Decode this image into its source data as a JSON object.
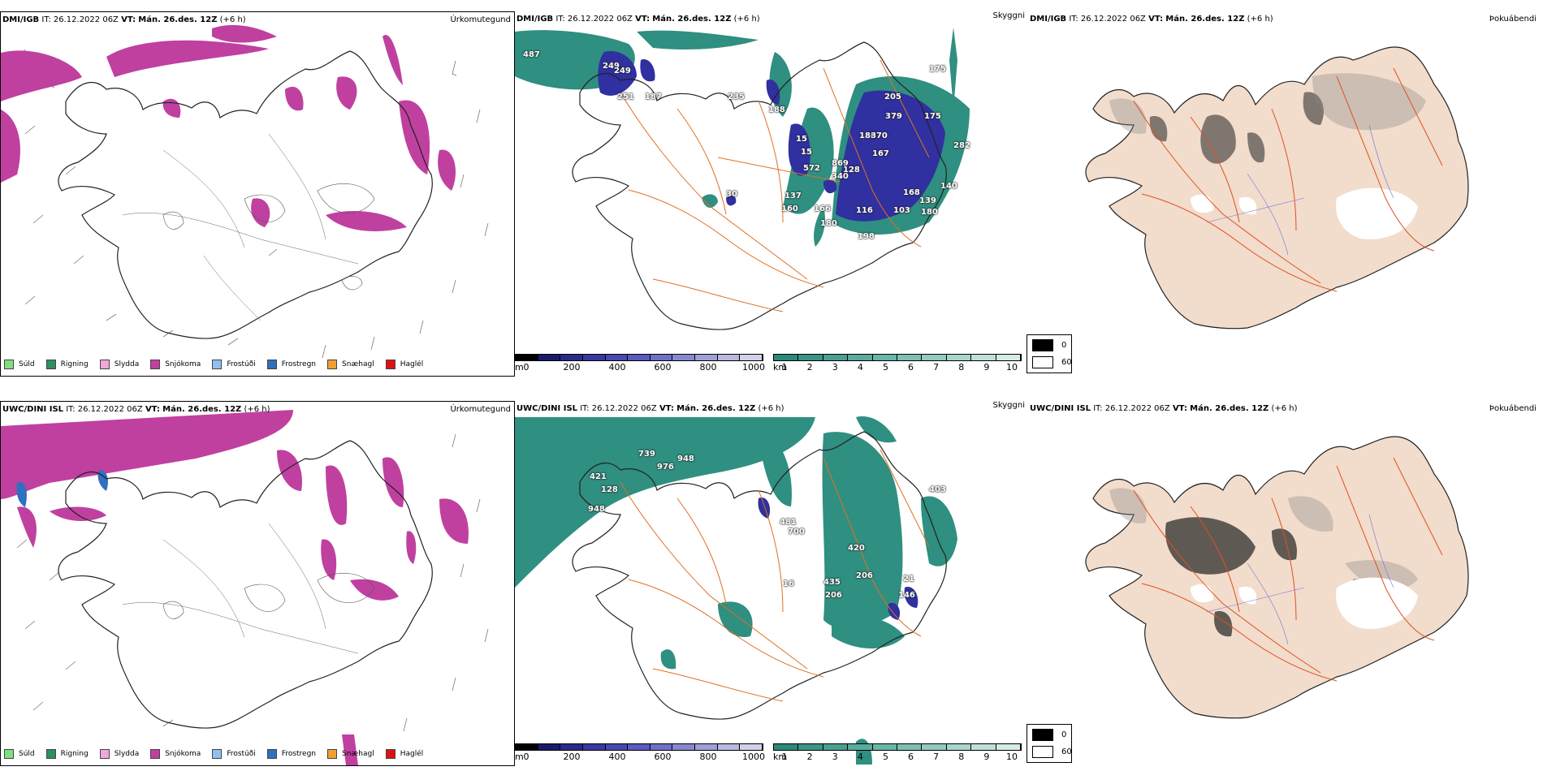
{
  "rows": [
    {
      "model": "DMI/IGB",
      "it_label": "IT:",
      "it_value": "26.12.2022 06Z",
      "vt_label": "VT:",
      "vt_value": "Mán. 26.des. 12Z",
      "lead": "(+6 h)",
      "precip_title": "Úrkomutegund",
      "visibility_title": "Skyggni",
      "fog_title": "Þokuábendi",
      "height_labels": [
        "487",
        "249",
        "251",
        "187",
        "249",
        "235",
        "188",
        "15",
        "15",
        "572",
        "869",
        "340",
        "137",
        "160",
        "166",
        "180",
        "116",
        "198",
        "128",
        "167",
        "168",
        "139",
        "140",
        "180",
        "103",
        "186",
        "370",
        "379",
        "175",
        "205",
        "282",
        "175",
        "30"
      ]
    },
    {
      "model": "UWC/DINI ISL",
      "it_label": "IT:",
      "it_value": "26.12.2022 06Z",
      "vt_label": "VT:",
      "vt_value": "Mán. 26.des. 12Z",
      "lead": "(+6 h)",
      "precip_title": "Úrkomutegund",
      "visibility_title": "Skyggni",
      "fog_title": "Þokuábendi",
      "height_labels": [
        "739",
        "948",
        "976",
        "421",
        "128",
        "948",
        "700",
        "481",
        "420",
        "435",
        "206",
        "206",
        "146",
        "21",
        "403",
        "16"
      ]
    }
  ],
  "precip_legend": [
    {
      "label": "Súld",
      "color": "#7fe07f"
    },
    {
      "label": "Rigning",
      "color": "#2f8f5f"
    },
    {
      "label": "Slydda",
      "color": "#f0a8d8"
    },
    {
      "label": "Snjókoma",
      "color": "#c040a0"
    },
    {
      "label": "Frostúði",
      "color": "#8fc0f0"
    },
    {
      "label": "Frostregn",
      "color": "#3070c0"
    },
    {
      "label": "Snæhagl",
      "color": "#f0a030"
    },
    {
      "label": "Haglél",
      "color": "#e01010"
    }
  ],
  "height_bar": {
    "unit": "m",
    "ticks": [
      "0",
      "200",
      "400",
      "600",
      "800",
      "1000"
    ],
    "colors": [
      "#000000",
      "#1a1a6a",
      "#2a2a8a",
      "#3838a0",
      "#4848b0",
      "#5a5ac0",
      "#7070c8",
      "#8888d0",
      "#a0a0d8",
      "#b8b8e0",
      "#d0d0e8"
    ]
  },
  "vis_bar": {
    "unit": "km",
    "ticks": [
      "1",
      "2",
      "3",
      "4",
      "5",
      "6",
      "7",
      "8",
      "9",
      "10"
    ],
    "colors": [
      "#2a8a7a",
      "#3a9585",
      "#4aa090",
      "#5aab9c",
      "#6ab6a8",
      "#7ec0b4",
      "#92cac0",
      "#a8d5cc",
      "#bee0d8",
      "#d4ebe6"
    ]
  },
  "fog_legend": [
    {
      "value": "0",
      "color": "#000000"
    },
    {
      "value": "60",
      "color": "#ffffff"
    }
  ],
  "colors": {
    "snow": "#c040a0",
    "vis": "#2f8f80",
    "low_height": "#3030a0",
    "roads": "#e07020",
    "land": "#f2dccb",
    "coast": "#000000"
  }
}
